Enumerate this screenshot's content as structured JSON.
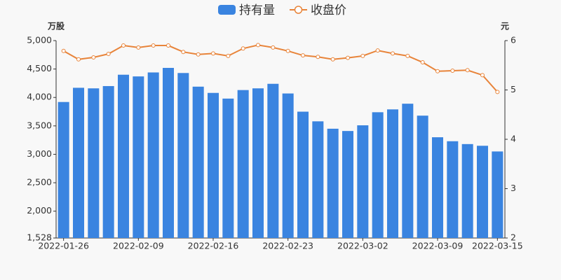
{
  "chart_data": {
    "type": "bar-line",
    "categories": [
      "2022-01-26",
      null,
      null,
      null,
      null,
      "2022-02-09",
      null,
      null,
      null,
      null,
      "2022-02-16",
      null,
      null,
      null,
      null,
      "2022-02-23",
      null,
      null,
      null,
      null,
      "2022-03-02",
      null,
      null,
      null,
      null,
      "2022-03-09",
      null,
      null,
      null,
      "2022-03-15"
    ],
    "series": [
      {
        "name": "持有量",
        "type": "bar",
        "color": "#3a84e0",
        "values": [
          3920,
          4170,
          4160,
          4200,
          4400,
          4370,
          4440,
          4520,
          4430,
          4190,
          4080,
          3980,
          4130,
          4160,
          4240,
          4070,
          3750,
          3580,
          3450,
          3410,
          3510,
          3740,
          3790,
          3890,
          3680,
          3300,
          3230,
          3180,
          3150,
          3050
        ]
      },
      {
        "name": "收盘价",
        "type": "line",
        "axis": "y2",
        "color": "#e8843a",
        "values": [
          5.79,
          5.62,
          5.66,
          5.73,
          5.9,
          5.86,
          5.9,
          5.9,
          5.77,
          5.72,
          5.74,
          5.69,
          5.84,
          5.91,
          5.86,
          5.79,
          5.7,
          5.67,
          5.62,
          5.65,
          5.69,
          5.8,
          5.74,
          5.69,
          5.56,
          5.38,
          5.39,
          5.4,
          5.3,
          4.96
        ]
      }
    ],
    "ylabel": "万股",
    "y2label": "元",
    "ylim": [
      1528,
      5000
    ],
    "yticks": [
      {
        "value": 1528,
        "label": "1,528"
      },
      {
        "value": 2000,
        "label": "2,000"
      },
      {
        "value": 2500,
        "label": "2,500"
      },
      {
        "value": 3000,
        "label": "3,000"
      },
      {
        "value": 3500,
        "label": "3,500"
      },
      {
        "value": 4000,
        "label": "4,000"
      },
      {
        "value": 4500,
        "label": "4,500"
      },
      {
        "value": 5000,
        "label": "5,000"
      }
    ],
    "y2lim": [
      2,
      6
    ],
    "y2ticks": [
      2,
      3,
      4,
      5,
      6
    ],
    "grid": false
  }
}
